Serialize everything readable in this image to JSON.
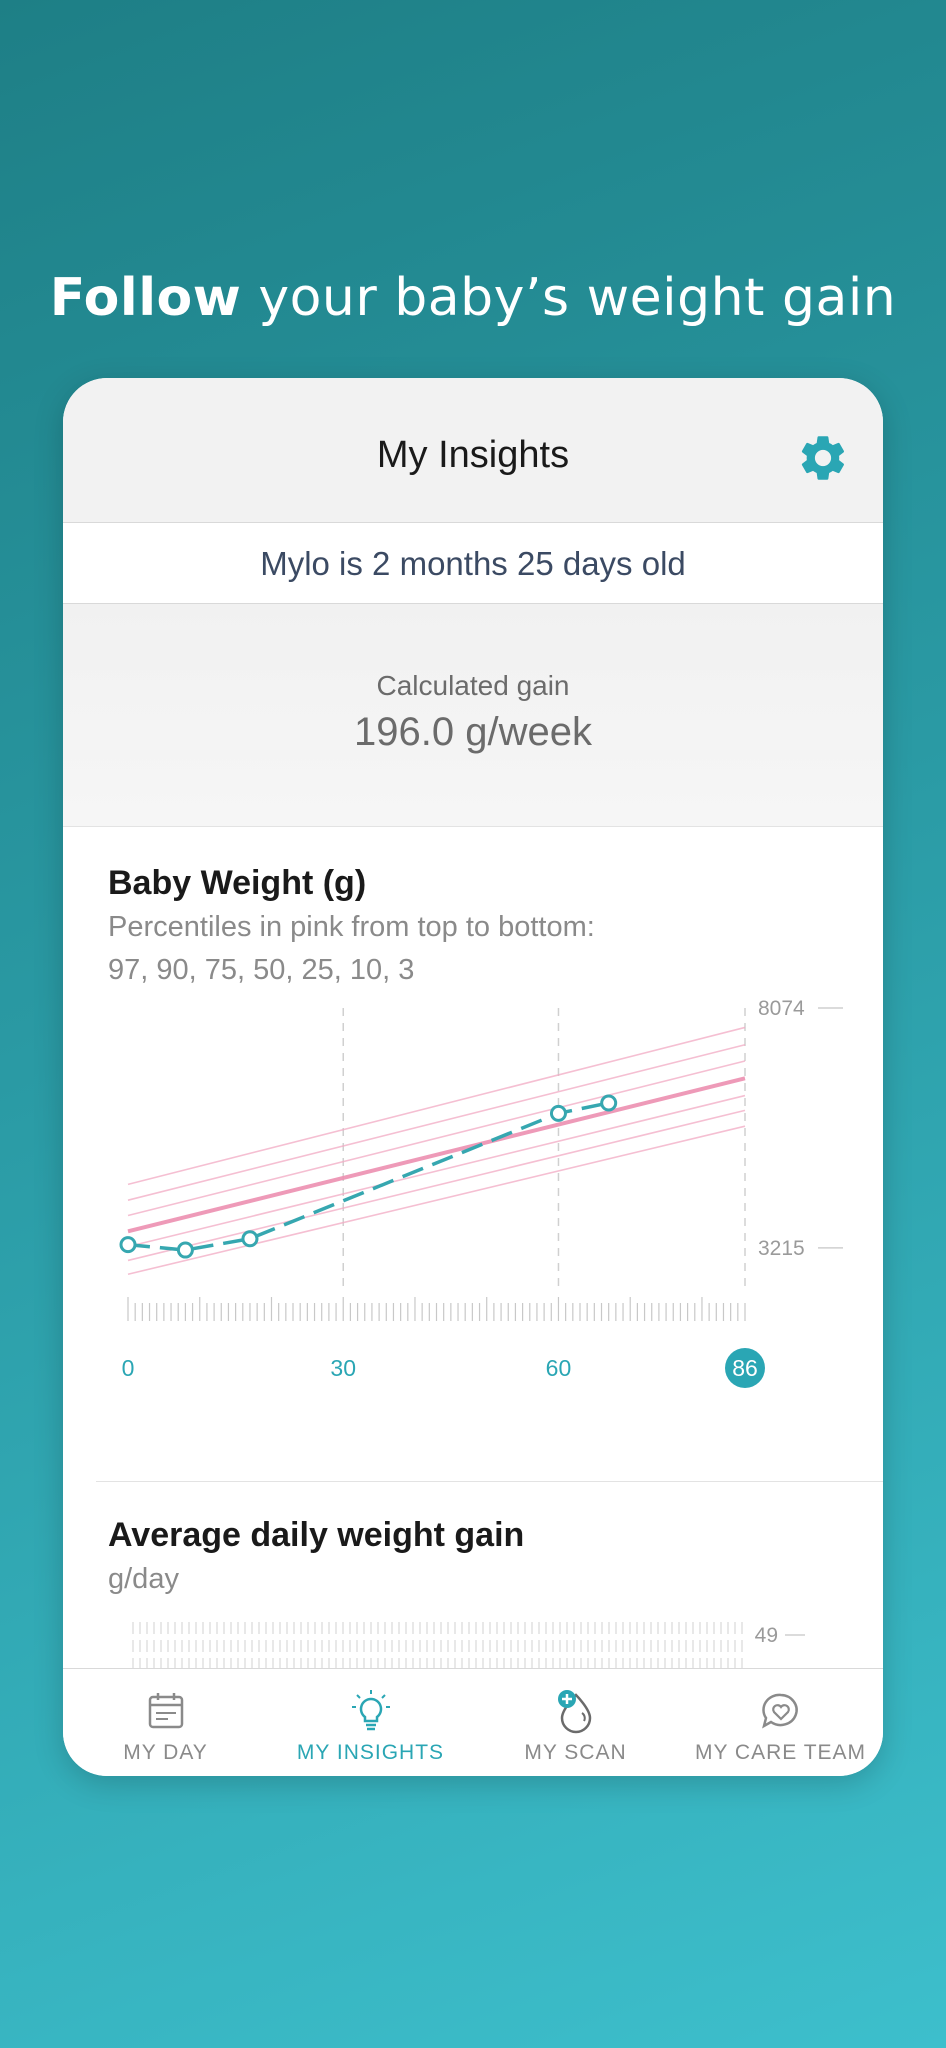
{
  "promo": {
    "headline_bold": "Follow",
    "headline_rest": " your baby’s weight gain"
  },
  "colors": {
    "accent": "#2aa6b4",
    "percentile_pink": "#f2a9c3",
    "median_pink": "#ec8fb0",
    "baby_line": "#36a7b0"
  },
  "header": {
    "title": "My Insights",
    "settings_icon": "gear-icon"
  },
  "baby": {
    "age_text": "Mylo  is 2 months 25 days old"
  },
  "gain": {
    "label": "Calculated gain",
    "value": "196.0 g/week"
  },
  "weight_card": {
    "title": "Baby Weight (g)",
    "subtitle_line1": "Percentiles in pink from top to bottom:",
    "subtitle_line2": "97, 90, 75, 50, 25, 10, 3"
  },
  "chart_data": [
    {
      "type": "line",
      "title": "Baby Weight (g)",
      "xlabel": "",
      "ylabel": "",
      "xlim": [
        0,
        86
      ],
      "ylim": [
        2300,
        8074
      ],
      "x_ticks": [
        "0",
        "30",
        "60",
        "86"
      ],
      "y_ticks": [
        "8074",
        "3215"
      ],
      "x_ticks_values": [
        0,
        30,
        60,
        86
      ],
      "y_ticks_values": [
        8074,
        3215
      ],
      "current_x": 86,
      "series": [
        {
          "name": "",
          "style": "dashed-points",
          "x": [
            0,
            8,
            17,
            60,
            67
          ],
          "y": [
            3280,
            3170,
            3400,
            5940,
            6150
          ]
        },
        {
          "name": "",
          "style": "percentile",
          "x": [
            0,
            86
          ],
          "y": [
            4500,
            7680
          ]
        },
        {
          "name": "",
          "style": "percentile",
          "x": [
            0,
            86
          ],
          "y": [
            4180,
            7330
          ]
        },
        {
          "name": "",
          "style": "percentile",
          "x": [
            0,
            86
          ],
          "y": [
            3870,
            7000
          ]
        },
        {
          "name": "",
          "style": "median",
          "x": [
            0,
            86
          ],
          "y": [
            3550,
            6650
          ]
        },
        {
          "name": "",
          "style": "percentile",
          "x": [
            0,
            86
          ],
          "y": [
            3240,
            6300
          ]
        },
        {
          "name": "",
          "style": "percentile",
          "x": [
            0,
            86
          ],
          "y": [
            2960,
            6000
          ]
        },
        {
          "name": "",
          "style": "percentile",
          "x": [
            0,
            86
          ],
          "y": [
            2680,
            5680
          ]
        }
      ]
    }
  ],
  "daily_gain_card": {
    "title": "Average daily weight gain",
    "subtitle": "g/day",
    "y_tick": "49"
  },
  "tabs": [
    {
      "label": "MY DAY",
      "icon": "calendar-icon",
      "active": false
    },
    {
      "label": "MY INSIGHTS",
      "icon": "lightbulb-icon",
      "active": true
    },
    {
      "label": "MY SCAN",
      "icon": "scan-drop-icon",
      "active": false
    },
    {
      "label": "MY CARE TEAM",
      "icon": "heart-chat-icon",
      "active": false
    }
  ]
}
